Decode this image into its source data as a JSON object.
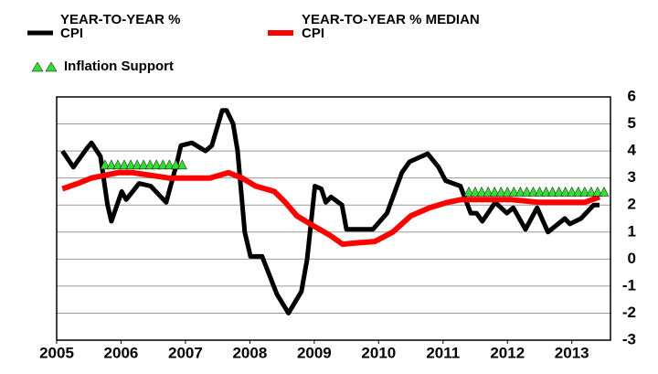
{
  "chart_data": {
    "type": "line",
    "xlim": [
      2005,
      2013.6
    ],
    "xticks": [
      2005,
      2006,
      2007,
      2008,
      2009,
      2010,
      2011,
      2012,
      2013
    ],
    "ylim": [
      -3,
      6
    ],
    "yticks": [
      -3,
      -2,
      -1,
      0,
      1,
      2,
      3,
      4,
      5,
      6
    ],
    "grid": true,
    "series": [
      {
        "name": "YEAR-TO-YEAR % CPI",
        "color": "#000000",
        "mark": "line",
        "x": [
          2005.09,
          2005.26,
          2005.47,
          2005.54,
          2005.68,
          2005.79,
          2005.85,
          2006.01,
          2006.08,
          2006.28,
          2006.46,
          2006.7,
          2006.86,
          2006.93,
          2007.1,
          2007.31,
          2007.41,
          2007.57,
          2007.64,
          2007.74,
          2007.81,
          2007.92,
          2008.01,
          2008.19,
          2008.42,
          2008.6,
          2008.8,
          2008.89,
          2009.01,
          2009.11,
          2009.18,
          2009.26,
          2009.43,
          2009.5,
          2009.91,
          2010.13,
          2010.36,
          2010.48,
          2010.76,
          2010.93,
          2011.04,
          2011.27,
          2011.43,
          2011.52,
          2011.61,
          2011.81,
          2011.99,
          2012.09,
          2012.28,
          2012.46,
          2012.63,
          2012.89,
          2012.97,
          2013.14,
          2013.34,
          2013.43
        ],
        "values": [
          4.0,
          3.4,
          4.1,
          4.3,
          3.8,
          2.0,
          1.4,
          2.5,
          2.2,
          2.8,
          2.7,
          2.1,
          3.5,
          4.2,
          4.3,
          4.0,
          4.2,
          5.5,
          5.5,
          5.0,
          4.0,
          1.0,
          0.1,
          0.1,
          -1.3,
          -2.0,
          -1.2,
          0.0,
          2.7,
          2.6,
          2.1,
          2.3,
          2.0,
          1.1,
          1.1,
          1.7,
          3.2,
          3.6,
          3.9,
          3.4,
          2.9,
          2.7,
          1.7,
          1.7,
          1.4,
          2.1,
          1.7,
          1.9,
          1.1,
          1.9,
          1.0,
          1.5,
          1.3,
          1.5,
          2.0,
          2.0
        ]
      },
      {
        "name": "YEAR-TO-YEAR % MEDIAN CPI",
        "color": "#ff0000",
        "mark": "line",
        "x": [
          2005.09,
          2005.33,
          2005.54,
          2005.75,
          2005.96,
          2006.18,
          2006.46,
          2006.74,
          2007.1,
          2007.38,
          2007.67,
          2007.88,
          2008.09,
          2008.38,
          2008.55,
          2008.73,
          2009.01,
          2009.23,
          2009.44,
          2009.65,
          2009.94,
          2010.22,
          2010.5,
          2010.79,
          2011.07,
          2011.28,
          2011.64,
          2012.06,
          2012.49,
          2012.91,
          2013.2,
          2013.43
        ],
        "values": [
          2.6,
          2.8,
          3.0,
          3.1,
          3.2,
          3.2,
          3.1,
          3.0,
          3.0,
          3.0,
          3.2,
          3.0,
          2.7,
          2.5,
          2.1,
          1.6,
          1.2,
          0.9,
          0.55,
          0.6,
          0.65,
          1.0,
          1.6,
          1.9,
          2.1,
          2.2,
          2.2,
          2.2,
          2.1,
          2.1,
          2.1,
          2.3
        ]
      },
      {
        "name": "Inflation Support",
        "color": "#33dd33",
        "mark": "triangle",
        "x": [
          2005.75,
          2005.85,
          2005.95,
          2006.05,
          2006.15,
          2006.25,
          2006.35,
          2006.45,
          2006.55,
          2006.65,
          2006.75,
          2006.85,
          2006.95,
          2011.4,
          2011.5,
          2011.6,
          2011.7,
          2011.8,
          2011.9,
          2012.0,
          2012.1,
          2012.2,
          2012.3,
          2012.4,
          2012.5,
          2012.6,
          2012.7,
          2012.8,
          2012.9,
          2013.0,
          2013.1,
          2013.2,
          2013.3,
          2013.4,
          2013.5
        ],
        "values": [
          3.5,
          3.5,
          3.5,
          3.5,
          3.5,
          3.5,
          3.5,
          3.5,
          3.5,
          3.5,
          3.5,
          3.5,
          3.5,
          2.5,
          2.5,
          2.5,
          2.5,
          2.5,
          2.5,
          2.5,
          2.5,
          2.5,
          2.5,
          2.5,
          2.5,
          2.5,
          2.5,
          2.5,
          2.5,
          2.5,
          2.5,
          2.5,
          2.5,
          2.5,
          2.5
        ]
      }
    ]
  }
}
